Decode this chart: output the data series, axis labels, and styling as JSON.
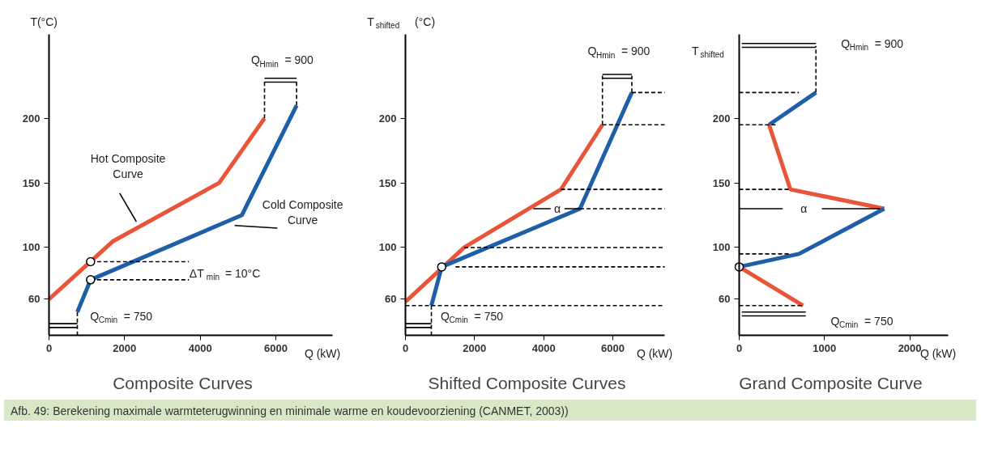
{
  "chart_data": [
    {
      "type": "line",
      "title": "Composite Curves",
      "xlabel": "Q (kW)",
      "ylabel": "T(°C)",
      "xlim": [
        0,
        7500
      ],
      "ylim": [
        32,
        265
      ],
      "xticks": [
        0,
        2000,
        4000,
        6000
      ],
      "yticks": [
        60,
        100,
        150,
        200
      ],
      "series": [
        {
          "color": "#e8553a",
          "x": [
            5700,
            4500,
            1700,
            0
          ],
          "values": [
            200,
            150,
            105,
            60
          ]
        },
        {
          "color": "#1f5fa8",
          "x": [
            750,
            1100,
            5100,
            6550
          ],
          "values": [
            50,
            75,
            125,
            210
          ]
        },
        {
          "type": "line",
          "line_style": "dashed",
          "color": "#000000",
          "x": [
            1100,
            3700
          ],
          "values": [
            89,
            89
          ]
        },
        {
          "type": "line",
          "line_style": "dashed",
          "color": "#000000",
          "x": [
            1100,
            3700
          ],
          "values": [
            75,
            75
          ]
        },
        {
          "type": "line",
          "line_style": "dashed",
          "color": "#000000",
          "x": [
            5700,
            5700
          ],
          "values": [
            200,
            230
          ]
        },
        {
          "type": "line",
          "line_style": "dashed",
          "color": "#000000",
          "x": [
            6550,
            6550
          ],
          "values": [
            210,
            230
          ]
        },
        {
          "type": "line",
          "color": "#000000",
          "x": [
            5700,
            6550
          ],
          "values": [
            231,
            231
          ]
        },
        {
          "type": "line",
          "color": "#000000",
          "x": [
            5700,
            6550
          ],
          "values": [
            228,
            228
          ]
        },
        {
          "type": "line",
          "color": "#000000",
          "x": [
            0,
            750
          ],
          "values": [
            41,
            41
          ]
        },
        {
          "type": "line",
          "color": "#000000",
          "x": [
            0,
            750
          ],
          "values": [
            38,
            38
          ]
        },
        {
          "type": "line",
          "line_style": "dashed",
          "color": "#000000",
          "x": [
            750,
            750
          ],
          "values": [
            50,
            32
          ]
        },
        {
          "type": "line",
          "color": "#000000",
          "x": [
            1870,
            2310
          ],
          "values": [
            142,
            120
          ]
        },
        {
          "type": "line",
          "color": "#000000",
          "x": [
            4910,
            6040
          ],
          "values": [
            117,
            115
          ]
        },
        {
          "type": "scatter",
          "marker": "circle",
          "color": "#ffffff",
          "x": [
            1100,
            1100
          ],
          "values": [
            89,
            75
          ]
        }
      ],
      "annotations": [
        "Hot Composite Curve",
        "Cold Composite Curve",
        "ΔT$_{min}$ = 10°C",
        "Q$_{Hmin}$ = 900",
        "Q$_{Cmin}$ = 750"
      ]
    },
    {
      "type": "line",
      "title": "Shifted Composite Curves",
      "xlabel": "Q (kW)",
      "ylabel": "T$_{shifted}$ (°C)",
      "xlim": [
        0,
        7500
      ],
      "ylim": [
        32,
        265
      ],
      "xticks": [
        0,
        2000,
        4000,
        6000
      ],
      "yticks": [
        60,
        100,
        150,
        200
      ],
      "series": [
        {
          "color": "#e8553a",
          "x": [
            5700,
            4500,
            1700,
            0
          ],
          "values": [
            195,
            145,
            100,
            58
          ]
        },
        {
          "color": "#1f5fa8",
          "x": [
            750,
            1050,
            5050,
            6550
          ],
          "values": [
            55,
            85,
            130,
            220
          ]
        },
        {
          "type": "line",
          "line_style": "dashed",
          "color": "#000000",
          "x": [
            6550,
            7500
          ],
          "values": [
            220,
            220
          ]
        },
        {
          "type": "line",
          "line_style": "dashed",
          "color": "#000000",
          "x": [
            5700,
            7500
          ],
          "values": [
            195,
            195
          ]
        },
        {
          "type": "line",
          "line_style": "dashed",
          "color": "#000000",
          "x": [
            4500,
            7500
          ],
          "values": [
            145,
            145
          ]
        },
        {
          "type": "line",
          "line_style": "dashed",
          "color": "#000000",
          "x": [
            5050,
            7500
          ],
          "values": [
            130,
            130
          ]
        },
        {
          "type": "line",
          "line_style": "dashed",
          "color": "#000000",
          "x": [
            1700,
            7500
          ],
          "values": [
            100,
            100
          ]
        },
        {
          "type": "line",
          "line_style": "dashed",
          "color": "#000000",
          "x": [
            1450,
            7500
          ],
          "values": [
            85,
            85
          ]
        },
        {
          "type": "line",
          "line_style": "dashed",
          "color": "#000000",
          "x": [
            0,
            7500
          ],
          "values": [
            55,
            55
          ]
        },
        {
          "type": "line",
          "color": "#000000",
          "x": [
            3700,
            4200
          ],
          "values": [
            130,
            130
          ]
        },
        {
          "type": "line",
          "color": "#000000",
          "x": [
            4600,
            5050
          ],
          "values": [
            130,
            130
          ]
        },
        {
          "type": "line",
          "line_style": "dashed",
          "color": "#000000",
          "x": [
            5700,
            5700
          ],
          "values": [
            195,
            233
          ]
        },
        {
          "type": "line",
          "line_style": "dashed",
          "color": "#000000",
          "x": [
            6550,
            6550
          ],
          "values": [
            220,
            233
          ]
        },
        {
          "type": "line",
          "color": "#000000",
          "x": [
            5700,
            6550
          ],
          "values": [
            234,
            234
          ]
        },
        {
          "type": "line",
          "color": "#000000",
          "x": [
            5700,
            6550
          ],
          "values": [
            231,
            231
          ]
        },
        {
          "type": "line",
          "color": "#000000",
          "x": [
            0,
            750
          ],
          "values": [
            41,
            41
          ]
        },
        {
          "type": "line",
          "color": "#000000",
          "x": [
            0,
            750
          ],
          "values": [
            38,
            38
          ]
        },
        {
          "type": "line",
          "line_style": "dashed",
          "color": "#000000",
          "x": [
            750,
            750
          ],
          "values": [
            55,
            32
          ]
        },
        {
          "type": "scatter",
          "marker": "circle",
          "color": "#ffffff",
          "x": [
            1050
          ],
          "values": [
            85
          ]
        }
      ],
      "annotations": [
        "α",
        "Q$_{Hmin}$ = 900",
        "Q$_{Cmin}$ = 750"
      ]
    },
    {
      "type": "line",
      "title": "Grand Composite Curve",
      "xlabel": "Q (kW)",
      "ylabel": "T$_{shifted}$",
      "xlim": [
        0,
        2450
      ],
      "ylim": [
        32,
        265
      ],
      "xticks": [
        0,
        1000,
        2000
      ],
      "yticks": [
        60,
        100,
        150,
        200
      ],
      "series": [
        {
          "color": "#1f5fa8",
          "x": [
            900,
            350
          ],
          "values": [
            220,
            195
          ]
        },
        {
          "color": "#e8553a",
          "x": [
            350,
            600,
            1700
          ],
          "values": [
            195,
            145,
            130
          ]
        },
        {
          "color": "#1f5fa8",
          "x": [
            1700,
            700,
            0
          ],
          "values": [
            130,
            95,
            85
          ]
        },
        {
          "color": "#e8553a",
          "x": [
            0,
            750
          ],
          "values": [
            85,
            55
          ]
        },
        {
          "type": "line",
          "line_style": "dashed",
          "color": "#000000",
          "x": [
            0,
            700
          ],
          "values": [
            220,
            220
          ]
        },
        {
          "type": "line",
          "line_style": "dashed",
          "color": "#000000",
          "x": [
            0,
            450
          ],
          "values": [
            195,
            195
          ]
        },
        {
          "type": "line",
          "line_style": "dashed",
          "color": "#000000",
          "x": [
            0,
            600
          ],
          "values": [
            145,
            145
          ]
        },
        {
          "type": "line",
          "line_style": "dashed",
          "color": "#000000",
          "x": [
            0,
            600
          ],
          "values": [
            95,
            95
          ]
        },
        {
          "type": "line",
          "line_style": "dashed",
          "color": "#000000",
          "x": [
            0,
            750
          ],
          "values": [
            55,
            55
          ]
        },
        {
          "type": "line",
          "color": "#000000",
          "x": [
            0,
            510
          ],
          "values": [
            130,
            130
          ]
        },
        {
          "type": "line",
          "color": "#000000",
          "x": [
            970,
            1650
          ],
          "values": [
            130,
            130
          ]
        },
        {
          "type": "line",
          "line_style": "dashed",
          "color": "#000000",
          "x": [
            900,
            900
          ],
          "values": [
            220,
            256
          ]
        },
        {
          "type": "line",
          "color": "#000000",
          "x": [
            30,
            900
          ],
          "values": [
            258,
            258
          ]
        },
        {
          "type": "line",
          "color": "#000000",
          "x": [
            30,
            900
          ],
          "values": [
            255,
            255
          ]
        },
        {
          "type": "line",
          "color": "#000000",
          "x": [
            30,
            780
          ],
          "values": [
            50,
            50
          ]
        },
        {
          "type": "line",
          "color": "#000000",
          "x": [
            30,
            780
          ],
          "values": [
            47,
            47
          ]
        },
        {
          "type": "scatter",
          "marker": "circle",
          "color": "#ffffff",
          "x": [
            0
          ],
          "values": [
            85
          ]
        }
      ],
      "annotations": [
        "α",
        "Q$_{Hmin}$ = 900",
        "Q$_{Cmin}$ = 750",
        "Afb. 49: Berekening maximale warmteterugwinning en minimale warme en koudevoorziening (CANMET, 2003))"
      ]
    }
  ]
}
